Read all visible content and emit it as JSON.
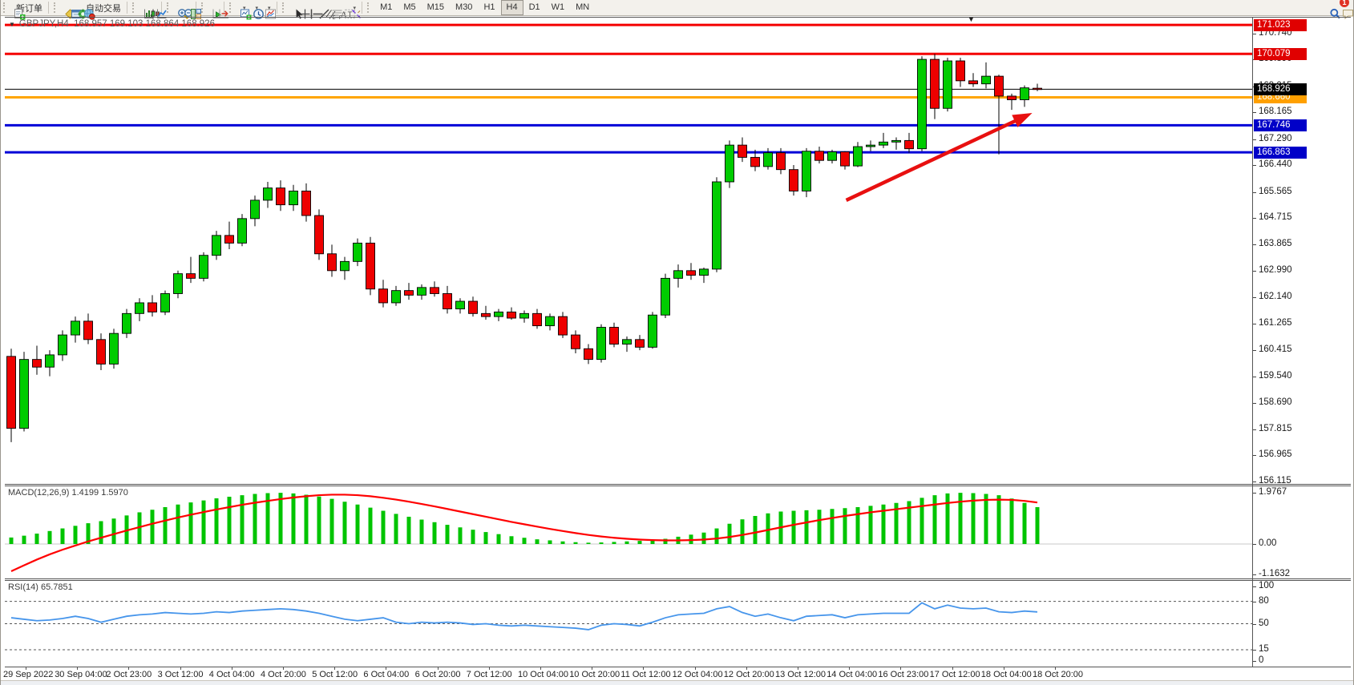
{
  "toolbar": {
    "groups": [
      {
        "items": [
          {
            "icon": "new-order-icon",
            "label": "新订单",
            "name": "new-order-button"
          }
        ]
      },
      {
        "items": [
          {
            "icon": "market-watch-icon",
            "name": "market-watch-button"
          },
          {
            "icon": "data-window-icon",
            "name": "data-window-button"
          },
          {
            "icon": "navigator-icon",
            "name": "navigator-button"
          },
          {
            "icon": "autotrade-icon",
            "label": "自动交易",
            "name": "autotrading-button"
          }
        ]
      },
      {
        "items": [
          {
            "icon": "bar-chart-icon",
            "name": "bar-chart-button"
          },
          {
            "icon": "candlestick-icon",
            "name": "candlestick-chart-button"
          },
          {
            "icon": "line-chart-icon",
            "name": "line-chart-button"
          }
        ]
      },
      {
        "items": [
          {
            "icon": "zoom-in-icon",
            "name": "zoom-in-button"
          },
          {
            "icon": "zoom-out-icon",
            "name": "zoom-out-button"
          },
          {
            "icon": "tile-windows-icon",
            "name": "tile-windows-button"
          }
        ]
      },
      {
        "items": [
          {
            "icon": "auto-scroll-icon",
            "name": "auto-scroll-button"
          },
          {
            "icon": "chart-shift-icon",
            "name": "chart-shift-button"
          }
        ]
      },
      {
        "items": [
          {
            "icon": "new-chart-icon",
            "name": "new-chart-button",
            "dropdown": true
          },
          {
            "icon": "periods-icon",
            "name": "periods-button",
            "dropdown": true
          },
          {
            "icon": "template-icon",
            "name": "templates-button",
            "dropdown": true
          }
        ]
      },
      {
        "items": [
          {
            "icon": "cursor-icon",
            "name": "cursor-button"
          },
          {
            "icon": "crosshair-icon",
            "name": "crosshair-button"
          },
          {
            "icon": "vertical-line-icon",
            "name": "vertical-line-button"
          },
          {
            "icon": "horizontal-line-icon",
            "name": "horizontal-line-button"
          },
          {
            "icon": "trendline-icon",
            "name": "trendline-button"
          },
          {
            "icon": "channel-icon",
            "name": "equidistant-channel-button"
          },
          {
            "icon": "fibonacci-icon",
            "name": "fibonacci-button"
          },
          {
            "icon": "text-icon",
            "name": "text-button"
          },
          {
            "icon": "label-icon",
            "name": "text-label-button"
          },
          {
            "icon": "arrows-icon",
            "name": "arrows-button",
            "dropdown": true
          }
        ]
      },
      {
        "items": [
          {
            "label": "M1",
            "name": "timeframe-m1"
          },
          {
            "label": "M5",
            "name": "timeframe-m5"
          },
          {
            "label": "M15",
            "name": "timeframe-m15"
          },
          {
            "label": "M30",
            "name": "timeframe-m30"
          },
          {
            "label": "H1",
            "name": "timeframe-h1"
          },
          {
            "label": "H4",
            "name": "timeframe-h4",
            "active": true
          },
          {
            "label": "D1",
            "name": "timeframe-d1"
          },
          {
            "label": "W1",
            "name": "timeframe-w1"
          },
          {
            "label": "MN",
            "name": "timeframe-mn"
          }
        ]
      }
    ],
    "right_items": [
      {
        "icon": "search-icon",
        "name": "search-button"
      },
      {
        "icon": "chat-icon",
        "name": "community-button",
        "badge": "1"
      }
    ]
  },
  "chart": {
    "title_symbol": "GBPJPY,H4",
    "title_ohlc": "168.957 169.103 168.864 168.926"
  },
  "chart_data": {
    "type": "candlestick",
    "symbol": "GBPJPY",
    "timeframe": "H4",
    "last_bar": {
      "open": 168.957,
      "high": 169.103,
      "low": 168.864,
      "close": 168.926
    },
    "current_price": 168.926,
    "colors": {
      "bull": "#00CC00",
      "bear": "#EE0000",
      "outline": "#000000",
      "macd_histogram": "#00C400",
      "macd_signal": "#FF0000",
      "rsi_line": "#4695EB",
      "level_red": "#F40000",
      "level_orange": "#FFA500",
      "level_blue": "#0000D8",
      "price_black": "#000000",
      "arrow": "#E81010"
    },
    "price_axis": {
      "ticks": [
        170.74,
        169.89,
        169.015,
        168.165,
        167.29,
        166.44,
        165.565,
        164.715,
        163.865,
        162.99,
        162.14,
        161.265,
        160.415,
        159.54,
        158.69,
        157.815,
        156.965,
        156.115
      ]
    },
    "hlines": [
      {
        "price": 171.023,
        "label": "171.023",
        "color": "#F40000",
        "badge": "#E00000",
        "name": "resistance-line-1"
      },
      {
        "price": 170.079,
        "label": "170.079",
        "color": "#F40000",
        "badge": "#E00000",
        "name": "resistance-line-2"
      },
      {
        "price": 168.66,
        "label": "168.660",
        "color": "#FFA500",
        "badge": "#FFA000",
        "name": "orange-level-line"
      },
      {
        "price": 167.746,
        "label": "167.746",
        "color": "#0000D8",
        "badge": "#0000C8",
        "name": "support-line-1"
      },
      {
        "price": 166.863,
        "label": "166.863",
        "color": "#0000D8",
        "badge": "#0000C8",
        "name": "support-line-2"
      }
    ],
    "current_price_line": {
      "price": 168.926,
      "label": "168.926",
      "color": "#000000",
      "badge": "#000000"
    },
    "x_labels": [
      "29 Sep 2022",
      "30 Sep 04:00",
      "2 Oct 23:00",
      "3 Oct 12:00",
      "4 Oct 04:00",
      "4 Oct 20:00",
      "5 Oct 12:00",
      "6 Oct 04:00",
      "6 Oct 20:00",
      "7 Oct 12:00",
      "10 Oct 04:00",
      "10 Oct 20:00",
      "11 Oct 12:00",
      "12 Oct 04:00",
      "12 Oct 20:00",
      "13 Oct 12:00",
      "14 Oct 04:00",
      "16 Oct 23:00",
      "17 Oct 12:00",
      "18 Oct 04:00",
      "18 Oct 20:00"
    ],
    "candles": [
      [
        160.2,
        160.45,
        157.4,
        157.85
      ],
      [
        157.85,
        160.35,
        157.75,
        160.1
      ],
      [
        160.1,
        160.55,
        159.6,
        159.85
      ],
      [
        159.85,
        160.4,
        159.55,
        160.25
      ],
      [
        160.25,
        161.05,
        160.05,
        160.9
      ],
      [
        160.9,
        161.5,
        160.65,
        161.35
      ],
      [
        161.35,
        161.6,
        160.6,
        160.75
      ],
      [
        160.75,
        160.95,
        159.75,
        159.95
      ],
      [
        159.95,
        161.1,
        159.8,
        160.95
      ],
      [
        160.95,
        161.75,
        160.8,
        161.6
      ],
      [
        161.6,
        162.1,
        161.35,
        161.95
      ],
      [
        161.95,
        162.2,
        161.5,
        161.65
      ],
      [
        161.65,
        162.35,
        161.55,
        162.25
      ],
      [
        162.25,
        163.0,
        162.1,
        162.9
      ],
      [
        162.9,
        163.45,
        162.6,
        162.75
      ],
      [
        162.75,
        163.6,
        162.65,
        163.5
      ],
      [
        163.5,
        164.3,
        163.35,
        164.15
      ],
      [
        164.15,
        164.6,
        163.7,
        163.9
      ],
      [
        163.9,
        164.85,
        163.8,
        164.7
      ],
      [
        164.7,
        165.45,
        164.45,
        165.3
      ],
      [
        165.3,
        165.9,
        165.05,
        165.7
      ],
      [
        165.7,
        165.95,
        164.95,
        165.15
      ],
      [
        165.15,
        165.8,
        164.95,
        165.6
      ],
      [
        165.6,
        165.85,
        164.6,
        164.8
      ],
      [
        164.8,
        165.0,
        163.35,
        163.55
      ],
      [
        163.55,
        163.85,
        162.8,
        163.0
      ],
      [
        163.0,
        163.45,
        162.7,
        163.3
      ],
      [
        163.3,
        164.05,
        163.15,
        163.9
      ],
      [
        163.9,
        164.1,
        162.2,
        162.4
      ],
      [
        162.4,
        162.7,
        161.8,
        161.95
      ],
      [
        161.95,
        162.5,
        161.85,
        162.35
      ],
      [
        162.35,
        162.6,
        162.05,
        162.2
      ],
      [
        162.2,
        162.55,
        162.05,
        162.45
      ],
      [
        162.45,
        162.65,
        162.15,
        162.25
      ],
      [
        162.25,
        162.5,
        161.6,
        161.75
      ],
      [
        161.75,
        162.1,
        161.6,
        162.0
      ],
      [
        162.0,
        162.15,
        161.5,
        161.6
      ],
      [
        161.6,
        161.85,
        161.4,
        161.5
      ],
      [
        161.5,
        161.75,
        161.35,
        161.65
      ],
      [
        161.65,
        161.8,
        161.4,
        161.45
      ],
      [
        161.45,
        161.7,
        161.3,
        161.6
      ],
      [
        161.6,
        161.75,
        161.1,
        161.2
      ],
      [
        161.2,
        161.6,
        161.05,
        161.5
      ],
      [
        161.5,
        161.65,
        160.8,
        160.9
      ],
      [
        160.9,
        161.05,
        160.3,
        160.45
      ],
      [
        160.45,
        160.6,
        159.95,
        160.1
      ],
      [
        160.1,
        161.25,
        160.0,
        161.15
      ],
      [
        161.15,
        161.3,
        160.5,
        160.6
      ],
      [
        160.6,
        160.85,
        160.35,
        160.75
      ],
      [
        160.75,
        160.9,
        160.4,
        160.5
      ],
      [
        160.5,
        161.65,
        160.45,
        161.55
      ],
      [
        161.55,
        162.9,
        161.45,
        162.75
      ],
      [
        162.75,
        163.2,
        162.45,
        163.0
      ],
      [
        163.0,
        163.25,
        162.7,
        162.85
      ],
      [
        162.85,
        163.1,
        162.6,
        163.05
      ],
      [
        163.05,
        166.05,
        162.95,
        165.9
      ],
      [
        165.9,
        167.25,
        165.7,
        167.1
      ],
      [
        167.1,
        167.35,
        166.55,
        166.7
      ],
      [
        166.7,
        166.95,
        166.25,
        166.4
      ],
      [
        166.4,
        167.0,
        166.3,
        166.85
      ],
      [
        166.85,
        167.0,
        166.15,
        166.3
      ],
      [
        166.3,
        166.45,
        165.45,
        165.6
      ],
      [
        165.6,
        167.0,
        165.4,
        166.9
      ],
      [
        166.9,
        167.05,
        166.5,
        166.6
      ],
      [
        166.6,
        166.95,
        166.5,
        166.88
      ],
      [
        166.88,
        166.9,
        166.3,
        166.42
      ],
      [
        166.42,
        167.2,
        166.38,
        167.05
      ],
      [
        167.05,
        167.25,
        166.9,
        167.1
      ],
      [
        167.1,
        167.5,
        167.0,
        167.2
      ],
      [
        167.2,
        167.35,
        166.95,
        167.25
      ],
      [
        167.25,
        167.5,
        166.85,
        166.98
      ],
      [
        166.98,
        170.0,
        166.9,
        169.9
      ],
      [
        169.9,
        170.08,
        167.95,
        168.3
      ],
      [
        168.3,
        169.95,
        168.2,
        169.85
      ],
      [
        169.85,
        169.95,
        169.0,
        169.2
      ],
      [
        169.2,
        169.45,
        169.0,
        169.1
      ],
      [
        169.1,
        169.8,
        168.95,
        169.35
      ],
      [
        169.35,
        169.4,
        166.8,
        168.7
      ],
      [
        168.7,
        168.78,
        168.25,
        168.58
      ],
      [
        168.58,
        169.05,
        168.35,
        168.97
      ],
      [
        168.957,
        169.103,
        168.864,
        168.926
      ]
    ],
    "macd": {
      "label": "MACD(12,26,9)",
      "value_main": "1.4199",
      "value_signal": "1.5970",
      "axis_ticks": [
        "1.9767",
        "0.00",
        "-1.1632"
      ],
      "histogram": [
        0.25,
        0.32,
        0.4,
        0.5,
        0.6,
        0.7,
        0.8,
        0.88,
        0.98,
        1.1,
        1.22,
        1.32,
        1.42,
        1.52,
        1.6,
        1.68,
        1.76,
        1.82,
        1.88,
        1.93,
        1.96,
        1.97,
        1.95,
        1.9,
        1.83,
        1.74,
        1.63,
        1.52,
        1.4,
        1.28,
        1.16,
        1.05,
        0.94,
        0.84,
        0.74,
        0.64,
        0.55,
        0.46,
        0.38,
        0.3,
        0.24,
        0.18,
        0.14,
        0.1,
        0.07,
        0.05,
        0.06,
        0.08,
        0.1,
        0.12,
        0.15,
        0.2,
        0.28,
        0.36,
        0.44,
        0.6,
        0.78,
        0.95,
        1.08,
        1.18,
        1.25,
        1.28,
        1.3,
        1.32,
        1.35,
        1.38,
        1.42,
        1.47,
        1.52,
        1.58,
        1.65,
        1.78,
        1.88,
        1.95,
        1.97,
        1.96,
        1.93,
        1.88,
        1.75,
        1.58,
        1.42
      ],
      "signal": [
        -1.05,
        -0.82,
        -0.6,
        -0.4,
        -0.22,
        -0.06,
        0.1,
        0.24,
        0.38,
        0.52,
        0.65,
        0.78,
        0.9,
        1.02,
        1.13,
        1.23,
        1.33,
        1.42,
        1.51,
        1.59,
        1.66,
        1.73,
        1.79,
        1.84,
        1.88,
        1.9,
        1.9,
        1.88,
        1.84,
        1.78,
        1.71,
        1.63,
        1.54,
        1.45,
        1.35,
        1.25,
        1.15,
        1.05,
        0.95,
        0.85,
        0.76,
        0.67,
        0.58,
        0.5,
        0.42,
        0.35,
        0.29,
        0.24,
        0.2,
        0.17,
        0.15,
        0.14,
        0.14,
        0.15,
        0.17,
        0.21,
        0.27,
        0.35,
        0.44,
        0.54,
        0.64,
        0.74,
        0.83,
        0.92,
        1.0,
        1.08,
        1.15,
        1.22,
        1.28,
        1.34,
        1.4,
        1.46,
        1.52,
        1.58,
        1.63,
        1.67,
        1.7,
        1.71,
        1.7,
        1.66,
        1.6
      ]
    },
    "rsi": {
      "label": "RSI(14)",
      "value_text": "65.7851",
      "levels": [
        100,
        80,
        50,
        15,
        0
      ],
      "dashed_levels": [
        80,
        50,
        15
      ],
      "series": [
        58,
        56,
        54,
        55,
        57,
        60,
        57,
        52,
        56,
        60,
        62,
        63,
        65,
        64,
        63,
        64,
        66,
        65,
        67,
        68,
        69,
        70,
        69,
        67,
        64,
        60,
        56,
        54,
        56,
        58,
        52,
        50,
        52,
        51,
        52,
        51,
        49,
        50,
        48,
        47,
        48,
        47,
        46,
        45,
        44,
        42,
        48,
        50,
        49,
        47,
        52,
        58,
        62,
        63,
        64,
        70,
        73,
        65,
        60,
        63,
        58,
        54,
        60,
        61,
        62,
        58,
        62,
        63,
        64,
        64,
        64,
        78,
        70,
        75,
        71,
        70,
        71,
        66,
        65,
        67,
        65.79
      ]
    },
    "annotations": {
      "arrow": {
        "from_bar": 65.1,
        "from_price": 165.3,
        "to_bar": 79.6,
        "to_price": 168.15,
        "color": "#E81010"
      }
    }
  }
}
